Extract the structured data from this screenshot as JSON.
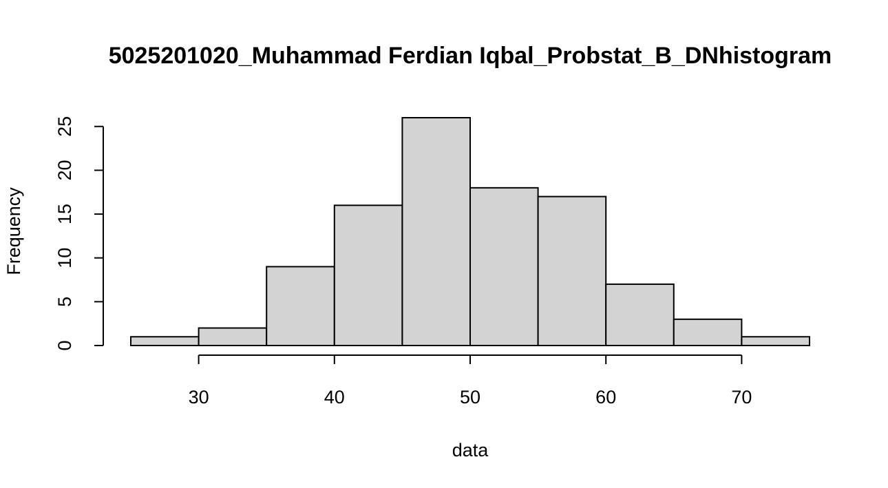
{
  "chart_data": {
    "type": "bar",
    "subtype": "histogram",
    "title": "5025201020_Muhammad Ferdian Iqbal_Probstat_B_DNhistogram",
    "xlabel": "data",
    "ylabel": "Frequency",
    "bins": [
      {
        "start": 25,
        "end": 30,
        "count": 1
      },
      {
        "start": 30,
        "end": 35,
        "count": 2
      },
      {
        "start": 35,
        "end": 40,
        "count": 9
      },
      {
        "start": 40,
        "end": 45,
        "count": 16
      },
      {
        "start": 45,
        "end": 50,
        "count": 26
      },
      {
        "start": 50,
        "end": 55,
        "count": 18
      },
      {
        "start": 55,
        "end": 60,
        "count": 17
      },
      {
        "start": 60,
        "end": 65,
        "count": 7
      },
      {
        "start": 65,
        "end": 70,
        "count": 3
      },
      {
        "start": 70,
        "end": 75,
        "count": 1
      }
    ],
    "xlim": [
      25,
      75
    ],
    "ylim": [
      0,
      26
    ],
    "x_ticks": [
      30,
      40,
      50,
      60,
      70
    ],
    "y_ticks": [
      0,
      5,
      10,
      15,
      20,
      25
    ],
    "bar_color": "#d3d3d3",
    "border_color": "#000000",
    "grid": false,
    "legend": "none"
  }
}
